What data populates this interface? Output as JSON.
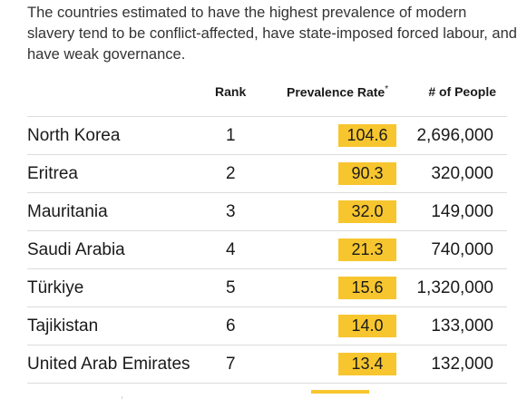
{
  "intro": "The countries estimated to have the highest prevalence of modern slavery tend to be conflict-affected, have state-imposed forced labour, and have weak governance.",
  "headers": {
    "rank": "Rank",
    "rate": "Prevalence Rate",
    "rate_mark": "*",
    "people": "# of People"
  },
  "rows": [
    {
      "country": "North Korea",
      "rank": "1",
      "rate": "104.6",
      "people": "2,696,000"
    },
    {
      "country": "Eritrea",
      "rank": "2",
      "rate": "90.3",
      "people": "320,000"
    },
    {
      "country": "Mauritania",
      "rank": "3",
      "rate": "32.0",
      "people": "149,000"
    },
    {
      "country": "Saudi Arabia",
      "rank": "4",
      "rate": "21.3",
      "people": "740,000"
    },
    {
      "country": "Türkiye",
      "rank": "5",
      "rate": "15.6",
      "people": "1,320,000"
    },
    {
      "country": "Tajikistan",
      "rank": "6",
      "rate": "14.0",
      "people": "133,000"
    },
    {
      "country": "United Arab Emirates",
      "rank": "7",
      "rate": "13.4",
      "people": "132,000"
    }
  ],
  "colors": {
    "highlight": "#f7c62f",
    "divider": "#dcdcdc",
    "text": "#1a1a1a"
  }
}
